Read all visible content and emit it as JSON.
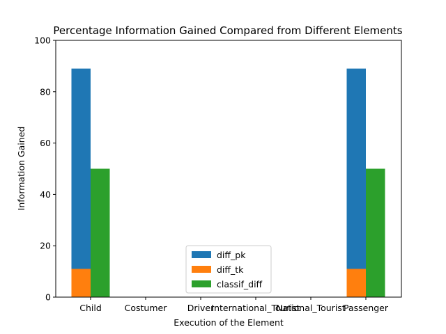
{
  "chart_data": {
    "type": "bar",
    "title": "Percentage Information Gained Compared from Different Elements",
    "xlabel": "Execution of the Element",
    "ylabel": "Information Gained",
    "ylim": [
      0,
      100
    ],
    "yticks": [
      "0",
      "20",
      "40",
      "60",
      "80",
      "100"
    ],
    "categories": [
      "Child",
      "Costumer",
      "Driver",
      "International_Tourist",
      "National_Tourist",
      "Passenger"
    ],
    "series": [
      {
        "name": "diff_pk",
        "color": "#1f77b4",
        "values": [
          89,
          0,
          0,
          0,
          0,
          89
        ]
      },
      {
        "name": "diff_tk",
        "color": "#ff7f0e",
        "values": [
          11,
          0,
          0,
          0,
          0,
          11
        ]
      },
      {
        "name": "classif_diff",
        "color": "#2ca02c",
        "values": [
          50,
          0,
          0,
          0,
          0,
          50
        ]
      }
    ],
    "grid": false,
    "legend_position": "bottom-center"
  }
}
